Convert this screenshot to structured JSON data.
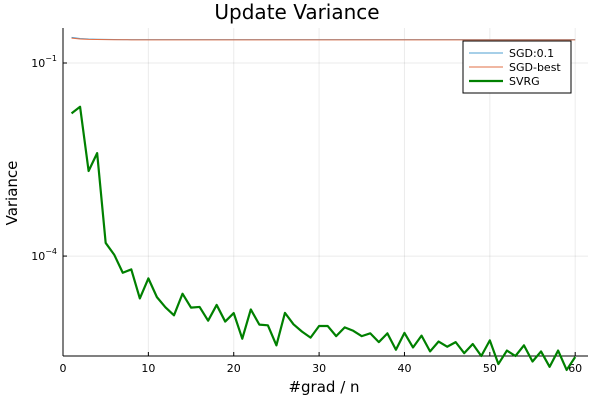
{
  "chart_data": {
    "type": "line",
    "title": "Update Variance",
    "xlabel": "#grad / n",
    "ylabel": "Variance",
    "xlim": [
      0,
      61.5
    ],
    "ylim": [
      2.8e-06,
      0.35
    ],
    "yscale": "log",
    "grid": true,
    "legend_position": "top-right",
    "x_ticks": [
      {
        "value": 0,
        "label": "0"
      },
      {
        "value": 10,
        "label": "10"
      },
      {
        "value": 20,
        "label": "20"
      },
      {
        "value": 30,
        "label": "30"
      },
      {
        "value": 40,
        "label": "40"
      },
      {
        "value": 50,
        "label": "50"
      },
      {
        "value": 60,
        "label": "60"
      }
    ],
    "y_ticks": [
      {
        "value": 0.1,
        "base": "10",
        "exp": "−1"
      },
      {
        "value": 0.0001,
        "base": "10",
        "exp": "−4"
      }
    ],
    "x": [
      1,
      2,
      3,
      4,
      5,
      6,
      7,
      8,
      9,
      10,
      11,
      12,
      13,
      14,
      15,
      16,
      17,
      18,
      19,
      20,
      21,
      22,
      23,
      24,
      25,
      26,
      27,
      28,
      29,
      30,
      31,
      32,
      33,
      34,
      35,
      36,
      37,
      38,
      39,
      40,
      41,
      42,
      43,
      44,
      45,
      46,
      47,
      48,
      49,
      50,
      51,
      52,
      53,
      54,
      55,
      56,
      57,
      58,
      59,
      60
    ],
    "series": [
      {
        "name": "SGD:0.1",
        "color": "#4e9fd1",
        "width": 1,
        "values": [
          0.25,
          0.24,
          0.236,
          0.234,
          0.233,
          0.232,
          0.231,
          0.231,
          0.231,
          0.231,
          0.231,
          0.231,
          0.231,
          0.231,
          0.231,
          0.231,
          0.231,
          0.231,
          0.231,
          0.231,
          0.231,
          0.231,
          0.231,
          0.231,
          0.231,
          0.231,
          0.231,
          0.231,
          0.231,
          0.231,
          0.231,
          0.231,
          0.231,
          0.231,
          0.231,
          0.231,
          0.231,
          0.231,
          0.231,
          0.231,
          0.231,
          0.231,
          0.231,
          0.231,
          0.231,
          0.231,
          0.231,
          0.231,
          0.231,
          0.231,
          0.231,
          0.231,
          0.231,
          0.231,
          0.231,
          0.231,
          0.231,
          0.231,
          0.231,
          0.231
        ]
      },
      {
        "name": "SGD-best",
        "color": "#e26f46",
        "width": 1,
        "values": [
          0.244,
          0.236,
          0.233,
          0.232,
          0.231,
          0.23,
          0.23,
          0.229,
          0.229,
          0.229,
          0.229,
          0.229,
          0.229,
          0.229,
          0.229,
          0.229,
          0.229,
          0.229,
          0.229,
          0.229,
          0.229,
          0.229,
          0.229,
          0.229,
          0.229,
          0.229,
          0.229,
          0.229,
          0.229,
          0.229,
          0.229,
          0.229,
          0.229,
          0.229,
          0.229,
          0.229,
          0.229,
          0.229,
          0.229,
          0.229,
          0.229,
          0.229,
          0.229,
          0.229,
          0.229,
          0.229,
          0.229,
          0.229,
          0.229,
          0.229,
          0.229,
          0.229,
          0.229,
          0.229,
          0.229,
          0.229,
          0.229,
          0.229,
          0.229,
          0.229
        ]
      },
      {
        "name": "SVRG",
        "color": "#008000",
        "width": 2.2,
        "values": [
          0.0165,
          0.0209,
          0.0021,
          0.00398,
          0.00016,
          0.000105,
          5.5e-05,
          6.2e-05,
          2.2e-05,
          4.5e-05,
          2.3e-05,
          1.6e-05,
          1.2e-05,
          2.6e-05,
          1.58e-05,
          1.62e-05,
          9.9e-06,
          1.74e-05,
          9.6e-06,
          1.3e-05,
          5.2e-06,
          1.48e-05,
          8.6e-06,
          8.4e-06,
          4.1e-06,
          1.31e-05,
          8.7e-06,
          6.7e-06,
          5.4e-06,
          8.2e-06,
          8.2e-06,
          5.7e-06,
          7.8e-06,
          6.9e-06,
          5.7e-06,
          6.3e-06,
          4.6e-06,
          6.3e-06,
          3.5e-06,
          6.4e-06,
          3.8e-06,
          5.8e-06,
          3.3e-06,
          4.7e-06,
          3.9e-06,
          4.6e-06,
          3.1e-06,
          4.3e-06,
          2.8e-06,
          4.9e-06,
          2.1e-06,
          3.4e-06,
          2.8e-06,
          4.1e-06,
          2.3e-06,
          3.3e-06,
          1.9e-06,
          3.4e-06,
          1.7e-06,
          2.7e-06
        ]
      }
    ]
  }
}
